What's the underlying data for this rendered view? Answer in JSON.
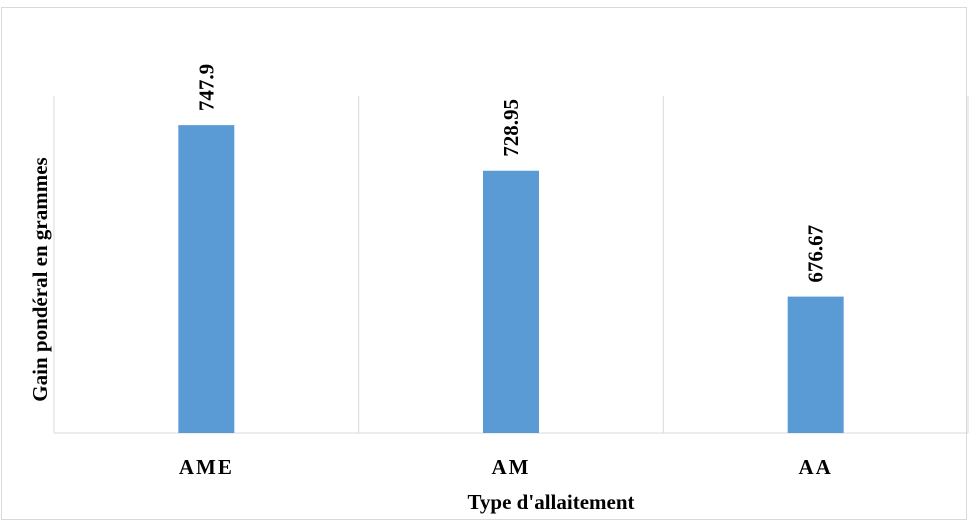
{
  "chart_data": {
    "type": "bar",
    "title": "",
    "xlabel": "Type d'allaitement",
    "ylabel": "Gain pondéral en grammes",
    "categories": [
      "AME",
      "AM",
      "AA"
    ],
    "values": [
      747.9,
      728.95,
      676.67
    ],
    "data_labels": [
      "747.9",
      "728.95",
      "676.67"
    ],
    "ylim": [
      620,
      760
    ],
    "grid": "vertical separators only",
    "legend": "none",
    "bar_color": "#5b9bd5",
    "gridline_color": "#d9d9d9"
  }
}
